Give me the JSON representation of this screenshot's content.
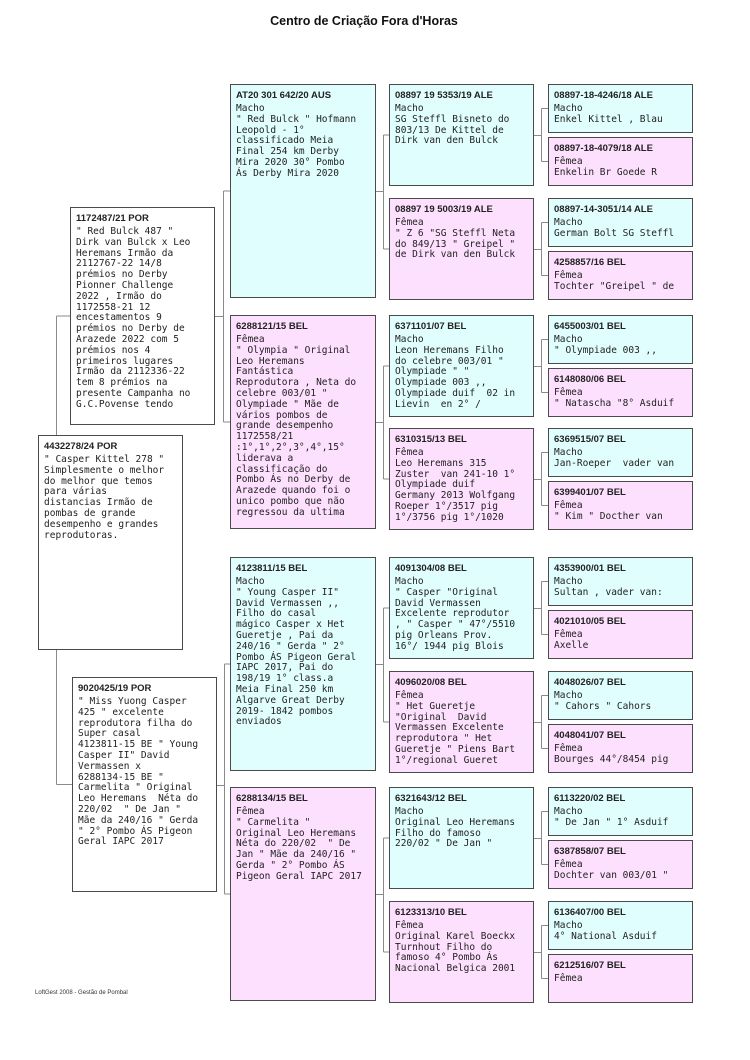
{
  "title": "Centro de Criação Fora d'Horas",
  "footer": "LoftGest 2008 - Gestão de Pombal",
  "colors": {
    "male": "#e0fefe",
    "female": "#fde0fd",
    "subject": "#ffffff",
    "border": "#4a4a4a",
    "connector": "#8a8a8a"
  },
  "birds": [
    {
      "role": "subject",
      "ring": "4432278/24 POR",
      "text": "\" Casper Kittel 278 \"\nSimplesmente o melhor\ndo melhor que temos\npara várias\ndistancias Irmão de\npombas de grande\ndesempenho e grandes\nreprodutoras."
    },
    {
      "role": "sire",
      "ring": "1172487/21 POR",
      "text": "\" Red Bulck 487 \"\nDirk van Bulck x Leo\nHeremans Irmão da\n2112767-22 14/8\nprémios no Derby\nPionner Challenge\n2022 , Irmão do\n1172558-21 12\nencestamentos 9\nprémios no Derby de\nArazede 2022 com 5\nprémios nos 4\nprimeiros lugares\nIrmão da 2112336-22\ntem 8 prémios na\npresente Campanha no\nG.C.Povense tendo"
    },
    {
      "role": "dam",
      "ring": "9020425/19 POR",
      "text": "\" Miss Yuong Casper\n425 \" excelente\nreprodutora filha do\nSuper casal\n4123811-15 BE \" Young\nCasper II\" David\nVermassen x\n6288134-15 BE \"\nCarmelita \" Original\nLeo Heremans  Néta do\n220/02  \" De Jan \"\nMãe da 240/16 \" Gerda\n\" 2° Pombo ÁS Pigeon\nGeral IAPC 2017"
    },
    {
      "role": "male",
      "ring": "AT20 301 642/20 AUS",
      "text": "Macho\n\" Red Bulck \" Hofmann\nLeopold - 1°\nclassificado Meia\nFinal 254 km Derby\nMira 2020 30° Pombo\nÁs Derby Mira 2020"
    },
    {
      "role": "female",
      "ring": "6288121/15 BEL",
      "text": "Fêmea\n\" Olympia \" Original\nLeo Heremans\nFantástica\nReprodutora , Neta do\ncelebre 003/01 \"\nOlympiade \" Mãe de\nvários pombos de\ngrande desempenho\n1172558/21\n:1°,1°,2°,3°,4°,15°\nliderava a\nclassificação do\nPombo Ás no Derby de\nArazede quando foi o\nunico pombo que não\nregressou da ultima"
    },
    {
      "role": "male",
      "ring": "4123811/15 BEL",
      "text": "Macho\n\" Young Casper II\"\nDavid Vermassen ,,\nFilho do casal\nmágico Casper x Het\nGueretje , Pai da\n240/16 \" Gerda \" 2°\nPombo ÁS Pigeon Geral\nIAPC 2017, Pai do\n198/19 1° class.a\nMeia Final 250 km\nAlgarve Great Derby\n2019- 1842 pombos\nenviados"
    },
    {
      "role": "female",
      "ring": "6288134/15 BEL",
      "text": "Fêmea\n\" Carmelita \"\nOriginal Leo Heremans\nNéta do 220/02  \" De\nJan \" Mãe da 240/16 \"\nGerda \" 2° Pombo ÁS\nPigeon Geral IAPC 2017"
    },
    {
      "role": "male",
      "ring": "08897 19 5353/19 ALE",
      "text": "Macho\nSG Steffl Bisneto do\n803/13 De Kittel de\nDirk van den Bulck"
    },
    {
      "role": "female",
      "ring": "08897 19 5003/19 ALE",
      "text": "Fêmea\n\" Z 6 \"SG Steffl Neta\ndo 849/13 \" Greipel \"\nde Dirk van den Bulck"
    },
    {
      "role": "male",
      "ring": "6371101/07 BEL",
      "text": "Macho\nLeon Heremans Filho\ndo celebre 003/01 \"\nOlympiade \" \"\nOlympiade 003 ,,\nOlympiade duif  02 in\nLievin  en 2° /"
    },
    {
      "role": "female",
      "ring": "6310315/13 BEL",
      "text": "Fêmea\nLeo Heremans 315\nZuster  van 241-10 1°\nOlympiade duif\nGermany 2013 Wolfgang\nRoeper 1°/3517 pig\n1°/3756 pig 1°/1020"
    },
    {
      "role": "male",
      "ring": "4091304/08 BEL",
      "text": "Macho\n\" Casper \"Original\nDavid Vermassen\nExcelente reprodutor\n, \" Casper \" 47°/5510\npig Orleans Prov.\n16°/ 1944 pig Blois"
    },
    {
      "role": "female",
      "ring": "4096020/08 BEL",
      "text": "Fêmea\n\" Het Gueretje\n\"Original  David\nVermassen Excelente\nreprodutora \" Het\nGueretje \" Piens Bart\n1°/regional Gueret"
    },
    {
      "role": "male",
      "ring": "6321643/12 BEL",
      "text": "Macho\nOriginal Leo Heremans\nFilho do famoso\n220/02 \" De Jan \""
    },
    {
      "role": "female",
      "ring": "6123313/10 BEL",
      "text": "Fêmea\nOriginal Karel Boeckx\nTurnhout Filho do\nfamoso 4° Pombo Ás\nNacional Belgica 2001"
    },
    {
      "role": "male",
      "ring": "08897-18-4246/18 ALE",
      "text": "Macho\nEnkel Kittel , Blau"
    },
    {
      "role": "female",
      "ring": "08897-18-4079/18 ALE",
      "text": "Fêmea\nEnkelin Br Goede R"
    },
    {
      "role": "male",
      "ring": "08897-14-3051/14 ALE",
      "text": "Macho\nGerman Bolt SG Steffl"
    },
    {
      "role": "female",
      "ring": "4258857/16 BEL",
      "text": "Fêmea\nTochter \"Greipel \" de"
    },
    {
      "role": "male",
      "ring": "6455003/01 BEL",
      "text": "Macho\n\" Olympiade 003 ,,"
    },
    {
      "role": "female",
      "ring": "6148080/06 BEL",
      "text": "Fêmea\n\" Natascha \"8° Asduif"
    },
    {
      "role": "male",
      "ring": "6369515/07 BEL",
      "text": "Macho\nJan-Roeper  vader van"
    },
    {
      "role": "female",
      "ring": "6399401/07 BEL",
      "text": "Fêmea\n\" Kim \" Docther van"
    },
    {
      "role": "male",
      "ring": "4353900/01 BEL",
      "text": "Macho\nSultan , vader van:"
    },
    {
      "role": "female",
      "ring": "4021010/05 BEL",
      "text": "Fêmea\nAxelle"
    },
    {
      "role": "male",
      "ring": "4048026/07 BEL",
      "text": "Macho\n\" Cahors \" Cahors"
    },
    {
      "role": "female",
      "ring": "4048041/07 BEL",
      "text": "Fêmea\nBourges 44°/8454 pig"
    },
    {
      "role": "male",
      "ring": "6113220/02 BEL",
      "text": "Macho\n\" De Jan \" 1° Asduif"
    },
    {
      "role": "female",
      "ring": "6387858/07 BEL",
      "text": "Fêmea\nDochter van 003/01 \""
    },
    {
      "role": "male",
      "ring": "6136407/00 BEL",
      "text": "Macho\n4° National Asduif"
    },
    {
      "role": "female",
      "ring": "6212516/07 BEL",
      "text": "Fêmea"
    }
  ]
}
